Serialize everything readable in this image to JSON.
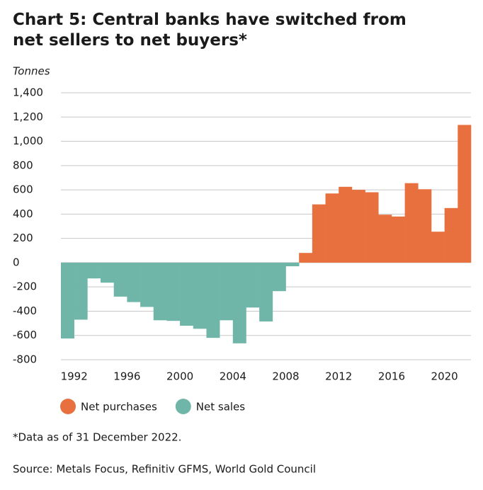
{
  "chart_data": {
    "type": "bar",
    "title": "Chart 5: Central banks have switched from net sellers to net buyers*",
    "y_label": "Tonnes",
    "footnote": "*Data as of 31 December 2022.",
    "source": "Source: Metals Focus, Refinitiv GFMS, World Gold Council",
    "categories": [
      "1992",
      null,
      null,
      null,
      "1996",
      null,
      null,
      null,
      "2000",
      null,
      null,
      null,
      "2004",
      null,
      null,
      null,
      "2008",
      null,
      null,
      null,
      "2012",
      null,
      null,
      null,
      "2016",
      null,
      null,
      null,
      "2020",
      null,
      null
    ],
    "series": [
      {
        "name": "Net purchases",
        "color": "#e8703f",
        "values": [
          null,
          null,
          null,
          null,
          null,
          null,
          null,
          null,
          null,
          null,
          null,
          null,
          null,
          null,
          null,
          null,
          null,
          null,
          80,
          480,
          570,
          625,
          600,
          580,
          395,
          380,
          655,
          605,
          255,
          450,
          1135
        ]
      },
      {
        "name": "Net sales",
        "color": "#6fb6a9",
        "values": [
          -625,
          -470,
          -130,
          -165,
          -280,
          -325,
          -365,
          -475,
          -480,
          -520,
          -545,
          -620,
          -475,
          -665,
          -370,
          -485,
          -235,
          -30,
          null,
          null,
          null,
          null,
          null,
          null,
          null,
          null,
          null,
          null,
          null,
          null,
          null
        ]
      }
    ],
    "ylim": [
      -800,
      1400
    ],
    "yticks": [
      -800,
      -600,
      -400,
      -200,
      0,
      200,
      400,
      600,
      800,
      {
        "value": 1000,
        "label": "1,000"
      },
      {
        "value": 1200,
        "label": "1,200"
      },
      {
        "value": 1400,
        "label": "1,400"
      }
    ],
    "grid": true
  }
}
